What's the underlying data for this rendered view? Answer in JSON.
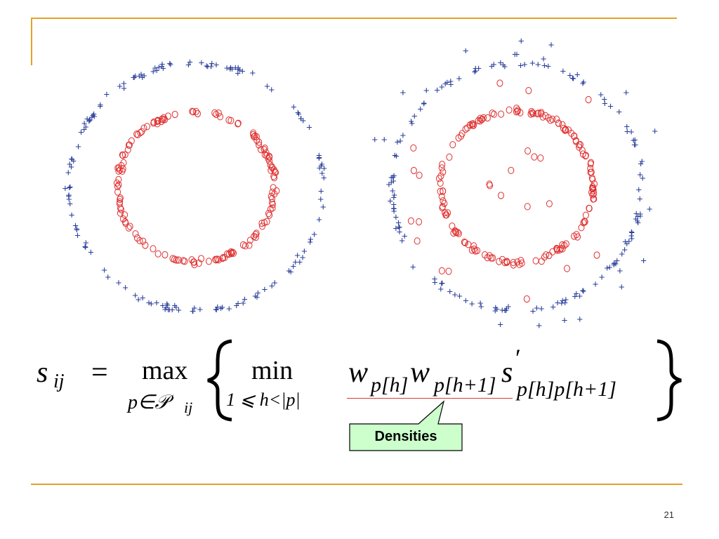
{
  "slide": {
    "page_number": "21",
    "rule_color": "#E3A228"
  },
  "callout": {
    "label": "Densities",
    "fill": "#CCFFCC",
    "underline_color": "#D83A3A"
  },
  "formula": {
    "lhs": "s",
    "lhs_sub": "ij",
    "equals": "=",
    "max_op": "max",
    "max_sub": "p∈𝒫",
    "max_sub_idx": "ij",
    "min_op": "min",
    "min_sub": "1 ⩽ h<|p|",
    "w1": "w",
    "w1_sub": "p[h]",
    "w2": "w",
    "w2_sub": "p[h+1]",
    "s": "s",
    "s_prime": "′",
    "s_sub": "p[h]p[h+1]"
  },
  "chart_data": [
    {
      "type": "scatter",
      "series": [
        {
          "marker": "+",
          "color": "#2A3F9A",
          "shape": "outer-ring",
          "count": 150
        },
        {
          "marker": "o",
          "color": "#E03030",
          "shape": "inner-ring",
          "count": 150
        }
      ]
    },
    {
      "type": "scatter",
      "series": [
        {
          "marker": "+",
          "color": "#2A3F9A",
          "shape": "outer-ring-noisy",
          "count": 160
        },
        {
          "marker": "o",
          "color": "#E03030",
          "shape": "inner-ring-noisy",
          "count": 180
        }
      ]
    }
  ]
}
